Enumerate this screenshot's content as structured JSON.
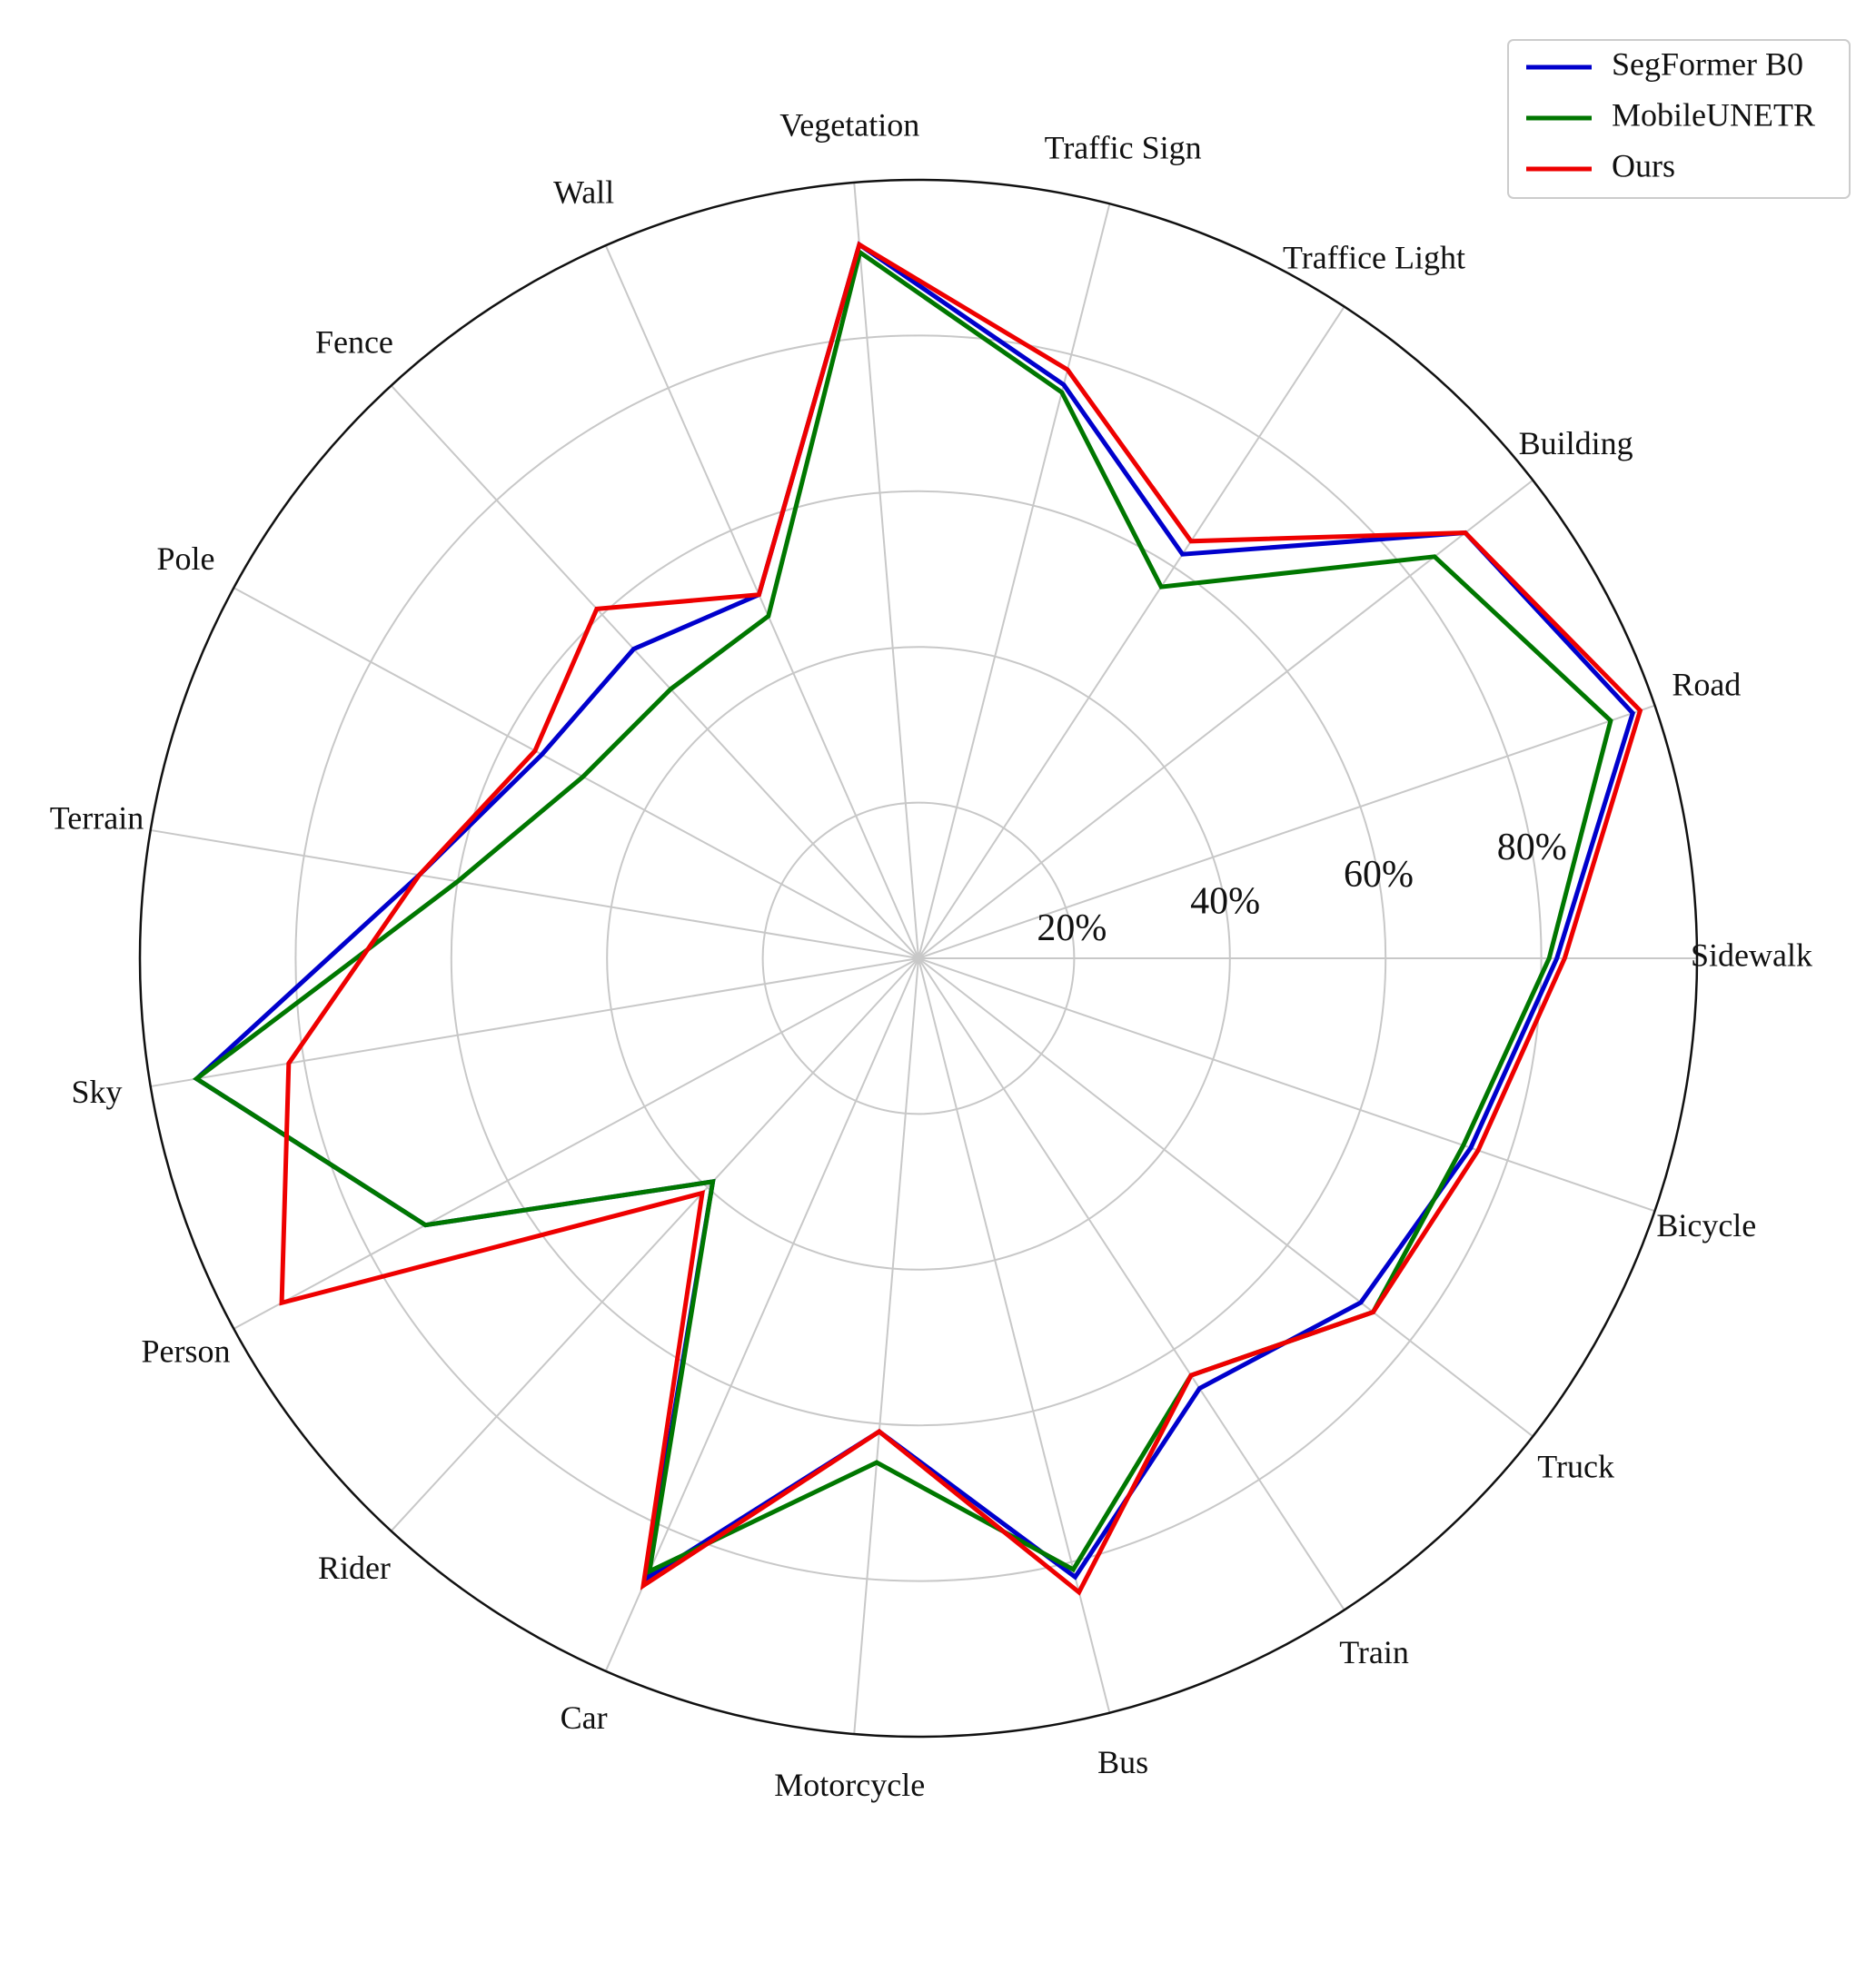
{
  "chart_data": {
    "type": "radar",
    "categories": [
      "Sidewalk",
      "Road",
      "Building",
      "Traffice Light",
      "Traffic Sign",
      "Vegetation",
      "Wall",
      "Fence",
      "Pole",
      "Terrain",
      "Sky",
      "Person",
      "Rider",
      "Car",
      "Motorcycle",
      "Bus",
      "Train",
      "Truck",
      "Bicycle"
    ],
    "radial_ticks": [
      {
        "value": 20,
        "label": "20%"
      },
      {
        "value": 40,
        "label": "40%"
      },
      {
        "value": 60,
        "label": "60%"
      },
      {
        "value": 80,
        "label": "80%"
      }
    ],
    "rlim": [
      0,
      100
    ],
    "grid": true,
    "legend_position": "top-right",
    "series": [
      {
        "name": "SegFormer B0",
        "color": "#0000cc",
        "values": [
          82,
          97,
          89,
          62,
          76,
          92,
          51,
          54,
          55,
          65,
          94,
          72,
          39,
          87,
          61,
          82,
          66,
          72,
          75
        ]
      },
      {
        "name": "MobileUNETR",
        "color": "#007700",
        "values": [
          81,
          94,
          84,
          57,
          75,
          91,
          48,
          47,
          49,
          60,
          94,
          72,
          39,
          86,
          65,
          81,
          64,
          74,
          74
        ]
      },
      {
        "name": "Ours",
        "color": "#ee0000",
        "values": [
          83,
          98,
          89,
          64,
          78,
          92,
          51,
          61,
          56,
          65,
          82,
          93,
          41,
          88,
          61,
          84,
          64,
          74,
          76
        ]
      }
    ]
  }
}
